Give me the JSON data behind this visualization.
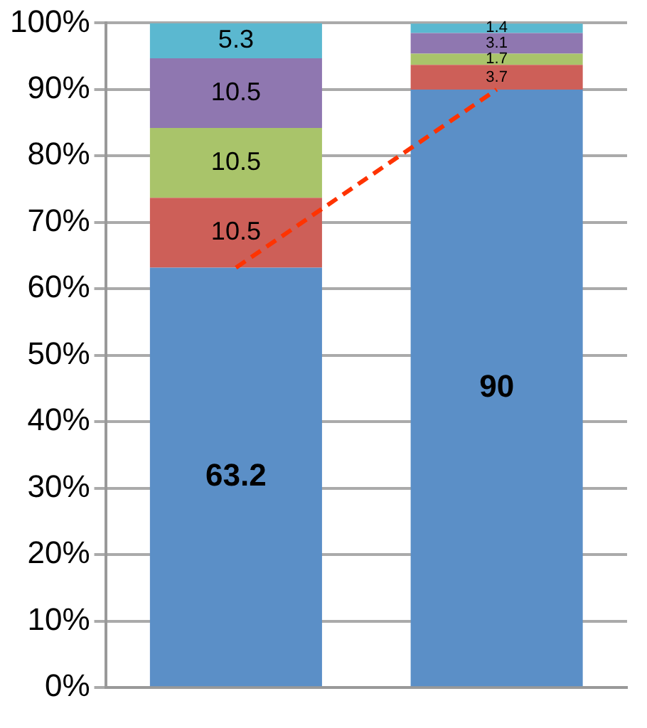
{
  "chart_data": {
    "type": "bar",
    "stacked": true,
    "categories": [
      null,
      null
    ],
    "ylim": [
      0,
      100
    ],
    "yticks": [
      {
        "value": 0,
        "label": "0%"
      },
      {
        "value": 10,
        "label": "10%"
      },
      {
        "value": 20,
        "label": "20%"
      },
      {
        "value": 30,
        "label": "30%"
      },
      {
        "value": 40,
        "label": "40%"
      },
      {
        "value": 50,
        "label": "50%"
      },
      {
        "value": 60,
        "label": "60%"
      },
      {
        "value": 70,
        "label": "70%"
      },
      {
        "value": 80,
        "label": "80%"
      },
      {
        "value": 90,
        "label": "90%"
      },
      {
        "value": 100,
        "label": "100%"
      }
    ],
    "grid": "y",
    "data_labels": true,
    "series": [
      {
        "color": "#5b8fc7",
        "values": [
          63.2,
          90
        ]
      },
      {
        "color": "#cd5f58",
        "values": [
          10.5,
          3.7
        ]
      },
      {
        "color": "#a9c46a",
        "values": [
          10.5,
          1.7
        ]
      },
      {
        "color": "#8f77b0",
        "values": [
          10.5,
          3.1
        ]
      },
      {
        "color": "#5bb8d0",
        "values": [
          5.3,
          1.4
        ]
      },
      {
        "type": "line",
        "color": "#ff3300",
        "line_style": "dashed",
        "values": [
          63.2,
          90
        ],
        "value_labels": [
          null,
          null
        ]
      }
    ]
  }
}
